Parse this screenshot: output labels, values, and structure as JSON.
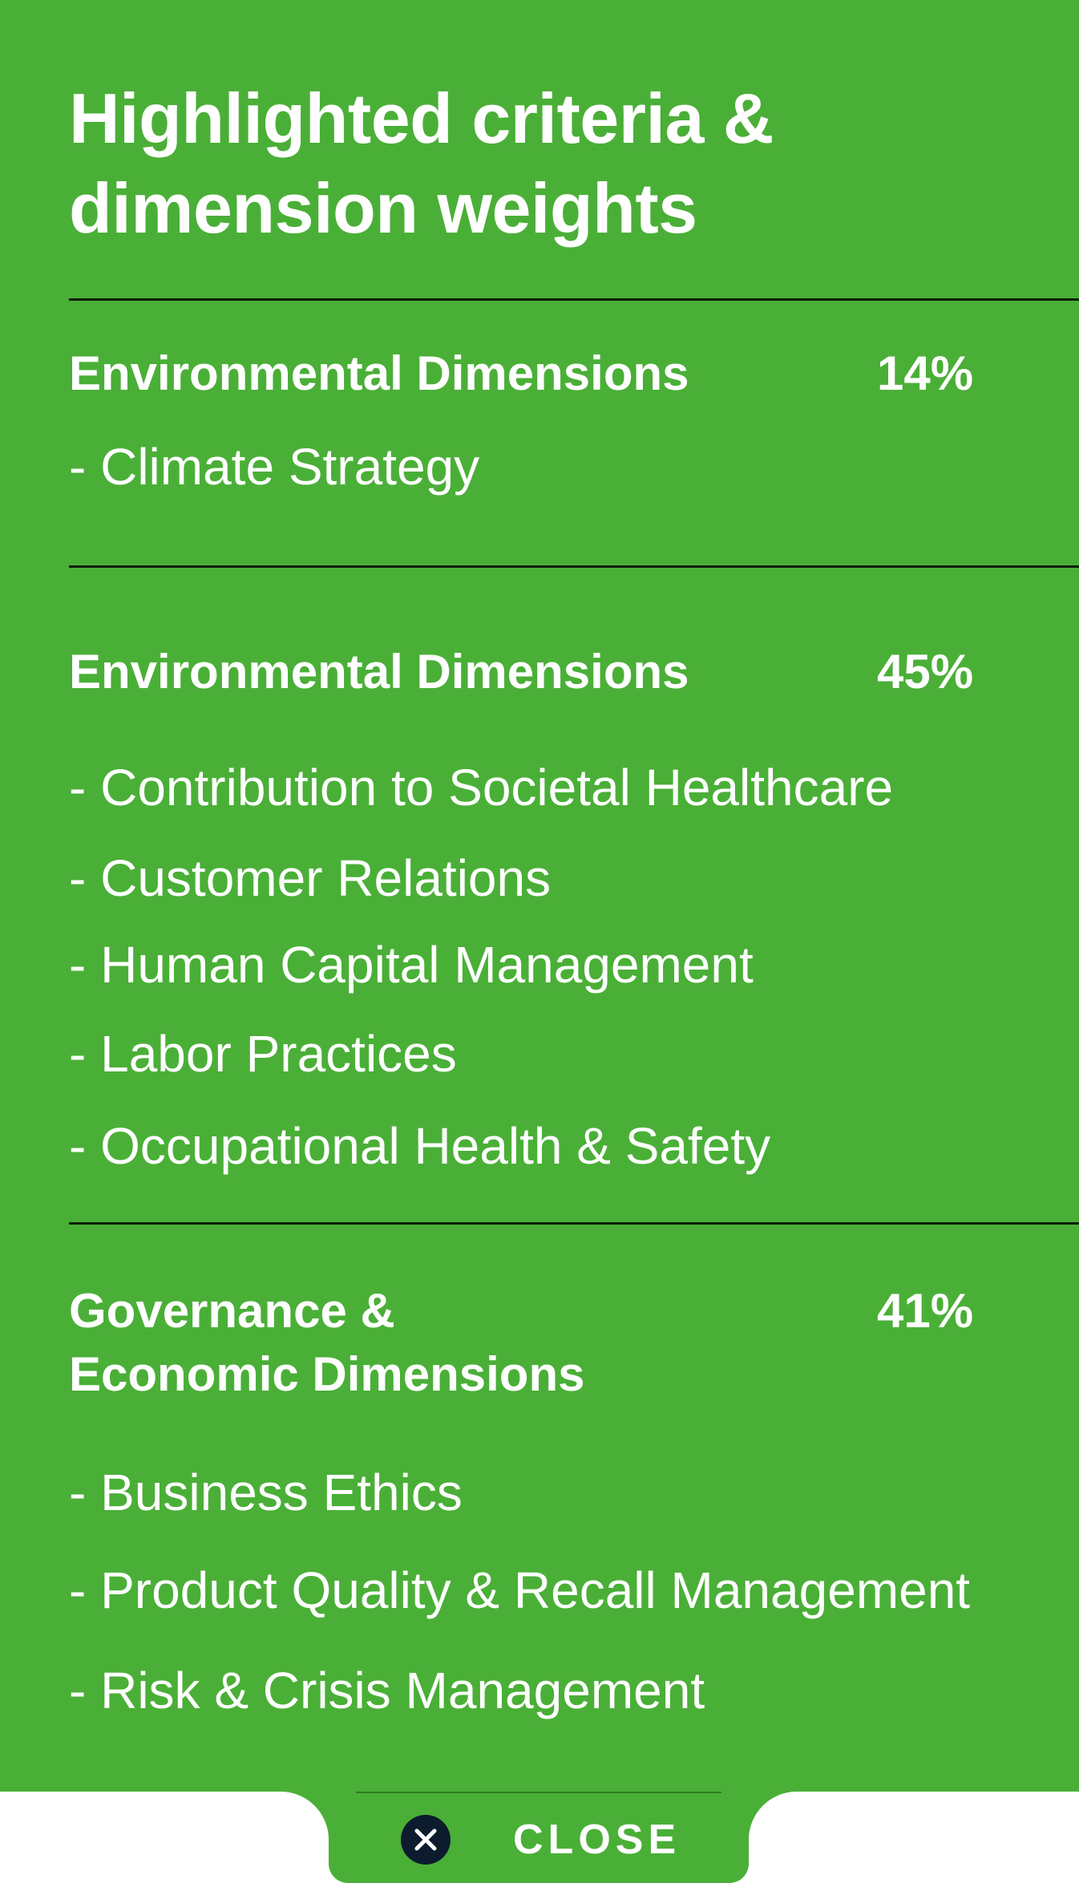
{
  "panel": {
    "title": "Highlighted criteria & dimension weights",
    "background_color": "#4aaf37",
    "divider_color": "#0d1f0a",
    "sections": [
      {
        "heading_line1": "Environmental Dimensions",
        "heading_line2": "",
        "weight": "14%",
        "items": [
          "- Climate Strategy"
        ]
      },
      {
        "heading_line1": "Environmental Dimensions",
        "heading_line2": "",
        "weight": "45%",
        "items": [
          "- Contribution to Societal Healthcare",
          "- Customer Relations",
          "- Human Capital Management",
          "- Labor Practices",
          "- Occupational Health & Safety"
        ]
      },
      {
        "heading_line1": "Governance &",
        "heading_line2": "Economic Dimensions",
        "weight": "41%",
        "items": [
          "- Business Ethics",
          "- Product Quality & Recall Management",
          "- Risk & Crisis Management"
        ]
      }
    ]
  },
  "close_control": {
    "label": "CLOSE",
    "icon": "close-icon",
    "icon_color": "#0d1b2e"
  }
}
